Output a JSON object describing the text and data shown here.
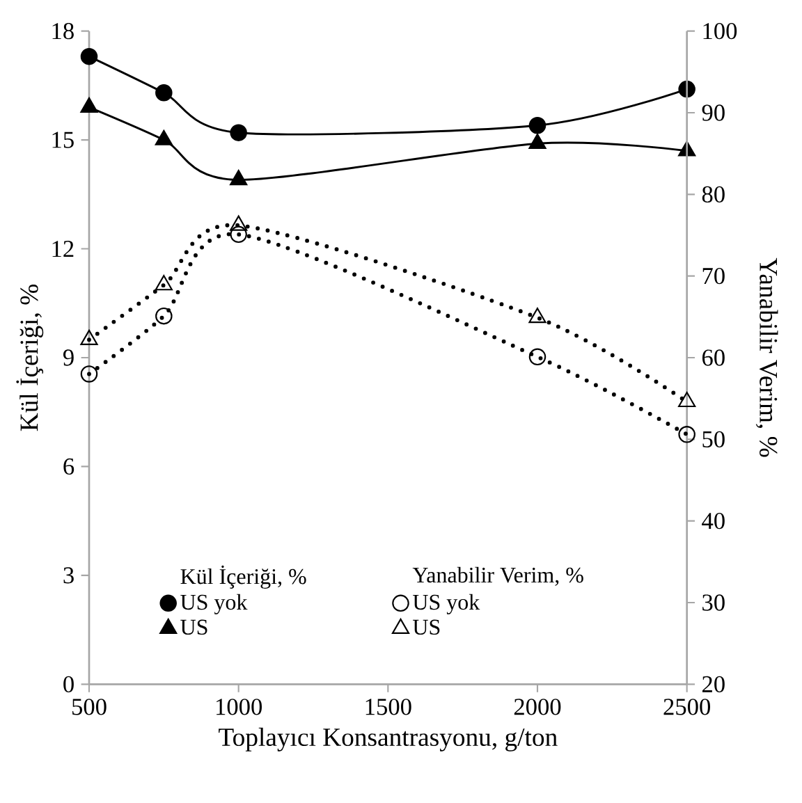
{
  "chart_data": {
    "type": "line",
    "xlabel": "Toplayıcı Konsantrasyonu, g/ton",
    "ylabel": "Kül İçeriği, %",
    "y2label": "Yanabilir Verim, %",
    "x": [
      500,
      750,
      1000,
      2000,
      2500
    ],
    "xlim": [
      500,
      2500
    ],
    "xticks": [
      500,
      1000,
      1500,
      2000,
      2500
    ],
    "ylim": [
      0,
      18
    ],
    "yticks": [
      0,
      3,
      6,
      9,
      12,
      15,
      18
    ],
    "y2lim": [
      20,
      100
    ],
    "y2ticks": [
      20,
      30,
      40,
      50,
      60,
      70,
      80,
      90,
      100
    ],
    "legend": "bottom",
    "annotations": [
      "Kül İçeriği, %",
      "Yanabilir Verim, %"
    ],
    "series": [
      {
        "name": "US yok",
        "color": "#000000",
        "marker": "circle",
        "line_style": "solid",
        "values": [
          17.3,
          16.3,
          15.2,
          15.4,
          16.4
        ]
      },
      {
        "name": "US",
        "color": "#000000",
        "marker": "triangle",
        "line_style": "solid",
        "values": [
          15.9,
          15.0,
          13.9,
          14.9,
          14.7
        ]
      },
      {
        "name": "US yok",
        "color": "#000000",
        "marker": "circle",
        "line_style": "dotted",
        "axis": "y2",
        "values": [
          58.0,
          65.1,
          75.1,
          60.1,
          50.6
        ]
      },
      {
        "name": "US",
        "color": "#000000",
        "marker": "triangle",
        "line_style": "dotted",
        "axis": "y2",
        "values": [
          62.2,
          68.9,
          76.2,
          64.9,
          54.6
        ]
      }
    ]
  }
}
